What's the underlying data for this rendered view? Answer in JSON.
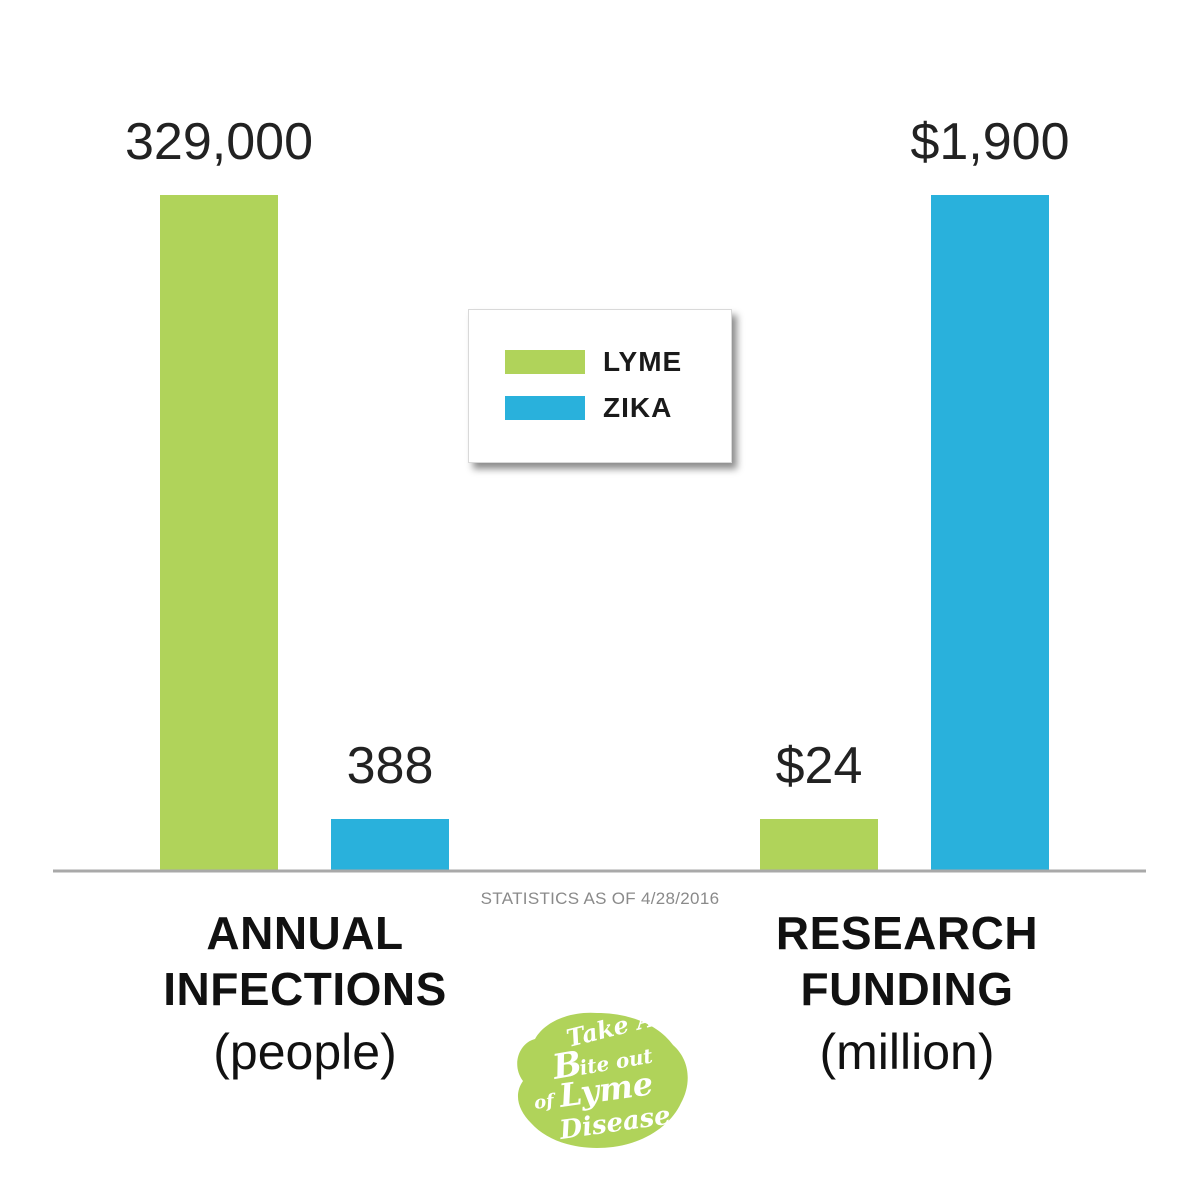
{
  "chart_data": {
    "type": "bar",
    "categories": [
      "ANNUAL INFECTIONS (people)",
      "RESEARCH FUNDING (million)"
    ],
    "series": [
      {
        "name": "LYME",
        "color": "#b0d35a",
        "values": [
          329000,
          24
        ],
        "labels": [
          "329,000",
          "$24"
        ]
      },
      {
        "name": "ZIKA",
        "color": "#29b1dc",
        "values": [
          388,
          1900
        ],
        "labels": [
          "388",
          "$1,900"
        ]
      }
    ],
    "note": "Each category drawn on its own (independent) vertical scale",
    "legend": {
      "position": "top-center"
    },
    "grid": false
  },
  "legend": {
    "lyme": "LYME",
    "zika": "ZIKA"
  },
  "footnote": "STATISTICS AS OF 4/28/2016",
  "groups": {
    "infections": {
      "line1": "ANNUAL",
      "line2": "INFECTIONS",
      "unit": "(people)"
    },
    "funding": {
      "line1": "RESEARCH",
      "line2": "FUNDING",
      "unit": "(million)"
    }
  },
  "logo": {
    "text": "Take A Bite out of Lyme Disease",
    "color": "#b0d35a"
  }
}
